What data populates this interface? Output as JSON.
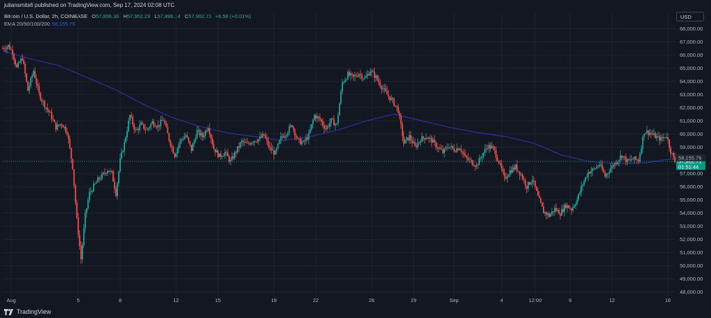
{
  "header": {
    "published": "juliansmits6 published on TradingView.com, Sep 17, 2024 02:08 UTC"
  },
  "legend": {
    "symbol": "Bitcoin / U.S. Dollar, 2h, COINBASE",
    "o_label": "O",
    "o_value": "57,896.36",
    "h_label": "H",
    "h_value": "57,952.29",
    "l_label": "L",
    "l_value": "57,896.14",
    "c_label": "C",
    "c_value": "57,902.71",
    "change": "+6.58 (+0.01%)",
    "ema_label": "EMA 20/50/100/200",
    "ema_value": "58,155.76"
  },
  "currency_button": "USD",
  "footer": {
    "brand": "TradingView"
  },
  "colors": {
    "background": "#131722",
    "up": "#26a69a",
    "down": "#ef5350",
    "ema": "#2a2e8c",
    "grid": "#1e222d"
  },
  "chart_data": {
    "type": "candlestick",
    "symbol": "Bitcoin / U.S. Dollar",
    "interval": "2h",
    "exchange": "COINBASE",
    "ylim": [
      47500,
      68700
    ],
    "y_ticks": [
      "48,000.00",
      "49,000.00",
      "50,000.00",
      "51,000.00",
      "52,000.00",
      "53,000.00",
      "54,000.00",
      "55,000.00",
      "56,000.00",
      "57,000.00",
      "58,000.00",
      "59,000.00",
      "60,000.00",
      "61,000.00",
      "62,000.00",
      "63,000.00",
      "64,000.00",
      "65,000.00",
      "66,000.00",
      "67,000.00",
      "68,000.00"
    ],
    "y_tick_values": [
      48000,
      49000,
      50000,
      51000,
      52000,
      53000,
      54000,
      55000,
      56000,
      57000,
      58000,
      59000,
      60000,
      61000,
      62000,
      63000,
      64000,
      65000,
      66000,
      67000,
      68000
    ],
    "x_ticks": [
      "Aug",
      "5",
      "8",
      "12",
      "15",
      "19",
      "22",
      "26",
      "29",
      "Sep",
      "4",
      "12:00",
      "9",
      "12",
      "16"
    ],
    "x_tick_index": [
      12,
      108,
      168,
      248,
      308,
      388,
      448,
      528,
      588,
      646,
      714,
      762,
      812,
      872,
      952
    ],
    "x_range_index": [
      0,
      962
    ],
    "path_points": [
      [
        0,
        66500
      ],
      [
        8,
        66700
      ],
      [
        14,
        66200
      ],
      [
        20,
        65000
      ],
      [
        28,
        65800
      ],
      [
        36,
        63300
      ],
      [
        44,
        64800
      ],
      [
        52,
        63000
      ],
      [
        60,
        62200
      ],
      [
        68,
        61500
      ],
      [
        76,
        60500
      ],
      [
        84,
        60800
      ],
      [
        92,
        60200
      ],
      [
        100,
        57500
      ],
      [
        106,
        53500
      ],
      [
        112,
        50500
      ],
      [
        118,
        53800
      ],
      [
        124,
        55500
      ],
      [
        130,
        56000
      ],
      [
        136,
        56500
      ],
      [
        142,
        56800
      ],
      [
        150,
        57300
      ],
      [
        156,
        57000
      ],
      [
        162,
        55500
      ],
      [
        168,
        58000
      ],
      [
        174,
        59300
      ],
      [
        182,
        61400
      ],
      [
        190,
        60200
      ],
      [
        198,
        60700
      ],
      [
        206,
        60300
      ],
      [
        214,
        60900
      ],
      [
        222,
        60600
      ],
      [
        230,
        61100
      ],
      [
        238,
        59600
      ],
      [
        246,
        58400
      ],
      [
        254,
        59500
      ],
      [
        262,
        59900
      ],
      [
        270,
        58800
      ],
      [
        278,
        60200
      ],
      [
        286,
        59800
      ],
      [
        294,
        60600
      ],
      [
        302,
        58900
      ],
      [
        310,
        58300
      ],
      [
        318,
        58600
      ],
      [
        326,
        57900
      ],
      [
        334,
        58700
      ],
      [
        342,
        59400
      ],
      [
        350,
        59200
      ],
      [
        358,
        59500
      ],
      [
        366,
        59600
      ],
      [
        374,
        59900
      ],
      [
        382,
        58900
      ],
      [
        390,
        58500
      ],
      [
        398,
        59700
      ],
      [
        406,
        60100
      ],
      [
        414,
        60700
      ],
      [
        422,
        59500
      ],
      [
        430,
        59300
      ],
      [
        438,
        59900
      ],
      [
        446,
        61400
      ],
      [
        454,
        61100
      ],
      [
        462,
        60400
      ],
      [
        470,
        61000
      ],
      [
        478,
        60700
      ],
      [
        486,
        63900
      ],
      [
        494,
        64500
      ],
      [
        502,
        64300
      ],
      [
        510,
        64600
      ],
      [
        518,
        64200
      ],
      [
        526,
        64800
      ],
      [
        534,
        64300
      ],
      [
        542,
        63600
      ],
      [
        550,
        63000
      ],
      [
        558,
        62500
      ],
      [
        566,
        61800
      ],
      [
        574,
        59300
      ],
      [
        582,
        59800
      ],
      [
        590,
        59000
      ],
      [
        598,
        59600
      ],
      [
        606,
        59800
      ],
      [
        614,
        59500
      ],
      [
        622,
        59000
      ],
      [
        630,
        58600
      ],
      [
        638,
        59100
      ],
      [
        646,
        58800
      ],
      [
        654,
        59000
      ],
      [
        662,
        58200
      ],
      [
        670,
        57900
      ],
      [
        678,
        57600
      ],
      [
        686,
        58400
      ],
      [
        694,
        59100
      ],
      [
        702,
        58900
      ],
      [
        710,
        57900
      ],
      [
        718,
        56600
      ],
      [
        726,
        57200
      ],
      [
        734,
        57500
      ],
      [
        742,
        56900
      ],
      [
        750,
        56000
      ],
      [
        758,
        56600
      ],
      [
        766,
        55200
      ],
      [
        774,
        54100
      ],
      [
        782,
        53800
      ],
      [
        790,
        54300
      ],
      [
        798,
        54000
      ],
      [
        806,
        54600
      ],
      [
        814,
        54300
      ],
      [
        822,
        55000
      ],
      [
        830,
        56200
      ],
      [
        838,
        57100
      ],
      [
        846,
        57300
      ],
      [
        854,
        57700
      ],
      [
        862,
        56800
      ],
      [
        870,
        57400
      ],
      [
        878,
        57900
      ],
      [
        886,
        58400
      ],
      [
        894,
        57900
      ],
      [
        902,
        58100
      ],
      [
        910,
        58000
      ],
      [
        918,
        60200
      ],
      [
        926,
        60100
      ],
      [
        934,
        59800
      ],
      [
        942,
        59600
      ],
      [
        950,
        59900
      ],
      [
        956,
        58700
      ],
      [
        962,
        57900
      ]
    ],
    "ema_points": [
      [
        0,
        66300
      ],
      [
        40,
        65700
      ],
      [
        80,
        65200
      ],
      [
        120,
        64300
      ],
      [
        160,
        63400
      ],
      [
        200,
        62300
      ],
      [
        240,
        61300
      ],
      [
        280,
        60600
      ],
      [
        320,
        60100
      ],
      [
        360,
        59800
      ],
      [
        400,
        59500
      ],
      [
        440,
        59800
      ],
      [
        480,
        60300
      ],
      [
        520,
        61000
      ],
      [
        560,
        61500
      ],
      [
        600,
        61000
      ],
      [
        640,
        60500
      ],
      [
        680,
        60100
      ],
      [
        720,
        59800
      ],
      [
        760,
        59300
      ],
      [
        800,
        58400
      ],
      [
        840,
        57900
      ],
      [
        880,
        57750
      ],
      [
        920,
        57800
      ],
      [
        962,
        58150
      ]
    ],
    "last_price": "57,902.71",
    "last_price_value": 57902.71,
    "countdown": "01:51:44",
    "ema_last": "58,155.76",
    "ema_last_value": 58155.76
  }
}
